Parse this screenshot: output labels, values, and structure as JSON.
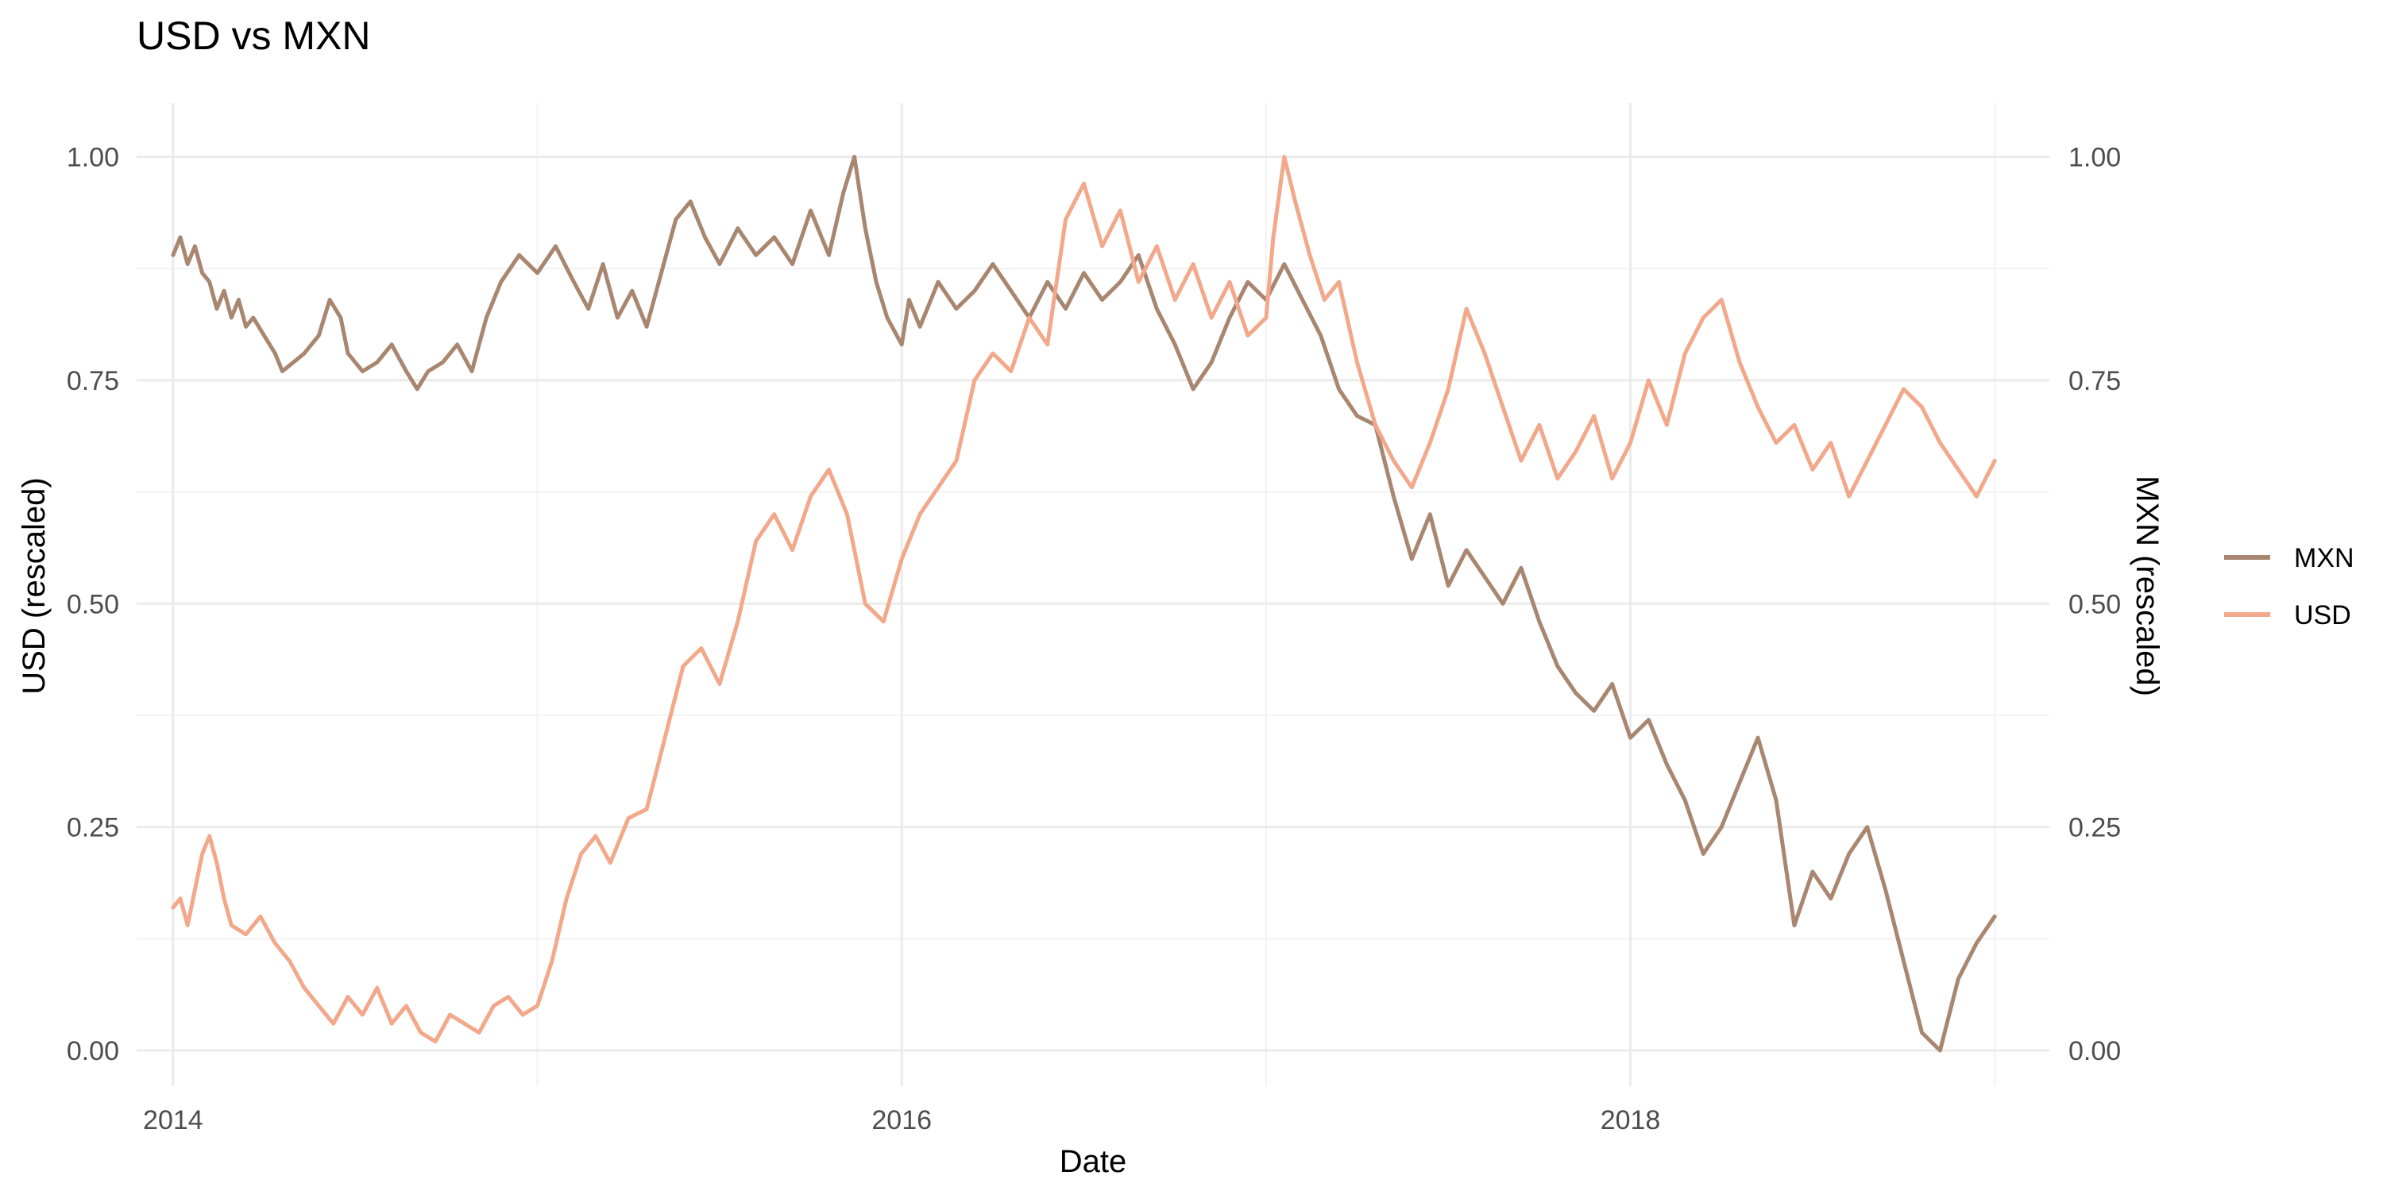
{
  "chart_data": {
    "type": "line",
    "title": "USD vs MXN",
    "xlabel": "Date",
    "ylabel": "USD (rescaled)",
    "y2label": "MXN (rescaled)",
    "xlim": [
      2013.9,
      2019.15
    ],
    "ylim": [
      -0.04,
      1.06
    ],
    "x_ticks": [
      2014,
      2016,
      2018
    ],
    "x_tick_labels": [
      "2014",
      "2016",
      "2018"
    ],
    "x_minor_ticks": [
      2015,
      2017,
      2019
    ],
    "y_ticks": [
      0,
      0.25,
      0.5,
      0.75,
      1
    ],
    "y_tick_labels": [
      "0.00",
      "0.25",
      "0.50",
      "0.75",
      "1.00"
    ],
    "y_minor_ticks": [
      0.125,
      0.375,
      0.625,
      0.875
    ],
    "grid": true,
    "legend_position": "right",
    "legend": [
      "MXN",
      "USD"
    ],
    "series": [
      {
        "name": "MXN",
        "color": "#a98670",
        "points": [
          [
            2014.0,
            0.89
          ],
          [
            2014.02,
            0.91
          ],
          [
            2014.04,
            0.88
          ],
          [
            2014.06,
            0.9
          ],
          [
            2014.08,
            0.87
          ],
          [
            2014.1,
            0.86
          ],
          [
            2014.12,
            0.83
          ],
          [
            2014.14,
            0.85
          ],
          [
            2014.16,
            0.82
          ],
          [
            2014.18,
            0.84
          ],
          [
            2014.2,
            0.81
          ],
          [
            2014.22,
            0.82
          ],
          [
            2014.25,
            0.8
          ],
          [
            2014.28,
            0.78
          ],
          [
            2014.3,
            0.76
          ],
          [
            2014.33,
            0.77
          ],
          [
            2014.36,
            0.78
          ],
          [
            2014.4,
            0.8
          ],
          [
            2014.43,
            0.84
          ],
          [
            2014.46,
            0.82
          ],
          [
            2014.48,
            0.78
          ],
          [
            2014.52,
            0.76
          ],
          [
            2014.56,
            0.77
          ],
          [
            2014.6,
            0.79
          ],
          [
            2014.64,
            0.76
          ],
          [
            2014.67,
            0.74
          ],
          [
            2014.7,
            0.76
          ],
          [
            2014.74,
            0.77
          ],
          [
            2014.78,
            0.79
          ],
          [
            2014.82,
            0.76
          ],
          [
            2014.86,
            0.82
          ],
          [
            2014.9,
            0.86
          ],
          [
            2014.95,
            0.89
          ],
          [
            2015.0,
            0.87
          ],
          [
            2015.05,
            0.9
          ],
          [
            2015.1,
            0.86
          ],
          [
            2015.14,
            0.83
          ],
          [
            2015.18,
            0.88
          ],
          [
            2015.22,
            0.82
          ],
          [
            2015.26,
            0.85
          ],
          [
            2015.3,
            0.81
          ],
          [
            2015.34,
            0.87
          ],
          [
            2015.38,
            0.93
          ],
          [
            2015.42,
            0.95
          ],
          [
            2015.46,
            0.91
          ],
          [
            2015.5,
            0.88
          ],
          [
            2015.55,
            0.92
          ],
          [
            2015.6,
            0.89
          ],
          [
            2015.65,
            0.91
          ],
          [
            2015.7,
            0.88
          ],
          [
            2015.75,
            0.94
          ],
          [
            2015.8,
            0.89
          ],
          [
            2015.84,
            0.96
          ],
          [
            2015.87,
            1.0
          ],
          [
            2015.9,
            0.92
          ],
          [
            2015.93,
            0.86
          ],
          [
            2015.96,
            0.82
          ],
          [
            2016.0,
            0.79
          ],
          [
            2016.02,
            0.84
          ],
          [
            2016.05,
            0.81
          ],
          [
            2016.1,
            0.86
          ],
          [
            2016.15,
            0.83
          ],
          [
            2016.2,
            0.85
          ],
          [
            2016.25,
            0.88
          ],
          [
            2016.3,
            0.85
          ],
          [
            2016.35,
            0.82
          ],
          [
            2016.4,
            0.86
          ],
          [
            2016.45,
            0.83
          ],
          [
            2016.5,
            0.87
          ],
          [
            2016.55,
            0.84
          ],
          [
            2016.6,
            0.86
          ],
          [
            2016.65,
            0.89
          ],
          [
            2016.7,
            0.83
          ],
          [
            2016.75,
            0.79
          ],
          [
            2016.8,
            0.74
          ],
          [
            2016.85,
            0.77
          ],
          [
            2016.9,
            0.82
          ],
          [
            2016.95,
            0.86
          ],
          [
            2017.0,
            0.84
          ],
          [
            2017.05,
            0.88
          ],
          [
            2017.1,
            0.84
          ],
          [
            2017.15,
            0.8
          ],
          [
            2017.2,
            0.74
          ],
          [
            2017.25,
            0.71
          ],
          [
            2017.3,
            0.7
          ],
          [
            2017.35,
            0.62
          ],
          [
            2017.4,
            0.55
          ],
          [
            2017.45,
            0.6
          ],
          [
            2017.5,
            0.52
          ],
          [
            2017.55,
            0.56
          ],
          [
            2017.6,
            0.53
          ],
          [
            2017.65,
            0.5
          ],
          [
            2017.7,
            0.54
          ],
          [
            2017.75,
            0.48
          ],
          [
            2017.8,
            0.43
          ],
          [
            2017.85,
            0.4
          ],
          [
            2017.9,
            0.38
          ],
          [
            2017.95,
            0.41
          ],
          [
            2018.0,
            0.35
          ],
          [
            2018.05,
            0.37
          ],
          [
            2018.1,
            0.32
          ],
          [
            2018.15,
            0.28
          ],
          [
            2018.2,
            0.22
          ],
          [
            2018.25,
            0.25
          ],
          [
            2018.3,
            0.3
          ],
          [
            2018.35,
            0.35
          ],
          [
            2018.4,
            0.28
          ],
          [
            2018.45,
            0.14
          ],
          [
            2018.5,
            0.2
          ],
          [
            2018.55,
            0.17
          ],
          [
            2018.6,
            0.22
          ],
          [
            2018.65,
            0.25
          ],
          [
            2018.7,
            0.18
          ],
          [
            2018.75,
            0.1
          ],
          [
            2018.8,
            0.02
          ],
          [
            2018.85,
            0.0
          ],
          [
            2018.9,
            0.08
          ],
          [
            2018.95,
            0.12
          ],
          [
            2019.0,
            0.15
          ]
        ]
      },
      {
        "name": "USD",
        "color": "#f2a88a",
        "points": [
          [
            2014.0,
            0.16
          ],
          [
            2014.02,
            0.17
          ],
          [
            2014.04,
            0.14
          ],
          [
            2014.06,
            0.18
          ],
          [
            2014.08,
            0.22
          ],
          [
            2014.1,
            0.24
          ],
          [
            2014.12,
            0.21
          ],
          [
            2014.14,
            0.17
          ],
          [
            2014.16,
            0.14
          ],
          [
            2014.2,
            0.13
          ],
          [
            2014.24,
            0.15
          ],
          [
            2014.28,
            0.12
          ],
          [
            2014.32,
            0.1
          ],
          [
            2014.36,
            0.07
          ],
          [
            2014.4,
            0.05
          ],
          [
            2014.44,
            0.03
          ],
          [
            2014.48,
            0.06
          ],
          [
            2014.52,
            0.04
          ],
          [
            2014.56,
            0.07
          ],
          [
            2014.6,
            0.03
          ],
          [
            2014.64,
            0.05
          ],
          [
            2014.68,
            0.02
          ],
          [
            2014.72,
            0.01
          ],
          [
            2014.76,
            0.04
          ],
          [
            2014.8,
            0.03
          ],
          [
            2014.84,
            0.02
          ],
          [
            2014.88,
            0.05
          ],
          [
            2014.92,
            0.06
          ],
          [
            2014.96,
            0.04
          ],
          [
            2015.0,
            0.05
          ],
          [
            2015.04,
            0.1
          ],
          [
            2015.08,
            0.17
          ],
          [
            2015.12,
            0.22
          ],
          [
            2015.16,
            0.24
          ],
          [
            2015.2,
            0.21
          ],
          [
            2015.25,
            0.26
          ],
          [
            2015.3,
            0.27
          ],
          [
            2015.35,
            0.35
          ],
          [
            2015.4,
            0.43
          ],
          [
            2015.45,
            0.45
          ],
          [
            2015.5,
            0.41
          ],
          [
            2015.55,
            0.48
          ],
          [
            2015.6,
            0.57
          ],
          [
            2015.65,
            0.6
          ],
          [
            2015.7,
            0.56
          ],
          [
            2015.75,
            0.62
          ],
          [
            2015.8,
            0.65
          ],
          [
            2015.85,
            0.6
          ],
          [
            2015.9,
            0.5
          ],
          [
            2015.95,
            0.48
          ],
          [
            2016.0,
            0.55
          ],
          [
            2016.05,
            0.6
          ],
          [
            2016.1,
            0.63
          ],
          [
            2016.15,
            0.66
          ],
          [
            2016.2,
            0.75
          ],
          [
            2016.25,
            0.78
          ],
          [
            2016.3,
            0.76
          ],
          [
            2016.35,
            0.82
          ],
          [
            2016.4,
            0.79
          ],
          [
            2016.45,
            0.93
          ],
          [
            2016.5,
            0.97
          ],
          [
            2016.55,
            0.9
          ],
          [
            2016.6,
            0.94
          ],
          [
            2016.65,
            0.86
          ],
          [
            2016.7,
            0.9
          ],
          [
            2016.75,
            0.84
          ],
          [
            2016.8,
            0.88
          ],
          [
            2016.85,
            0.82
          ],
          [
            2016.9,
            0.86
          ],
          [
            2016.95,
            0.8
          ],
          [
            2017.0,
            0.82
          ],
          [
            2017.02,
            0.91
          ],
          [
            2017.05,
            1.0
          ],
          [
            2017.08,
            0.95
          ],
          [
            2017.12,
            0.89
          ],
          [
            2017.16,
            0.84
          ],
          [
            2017.2,
            0.86
          ],
          [
            2017.25,
            0.77
          ],
          [
            2017.3,
            0.7
          ],
          [
            2017.35,
            0.66
          ],
          [
            2017.4,
            0.63
          ],
          [
            2017.45,
            0.68
          ],
          [
            2017.5,
            0.74
          ],
          [
            2017.55,
            0.83
          ],
          [
            2017.6,
            0.78
          ],
          [
            2017.65,
            0.72
          ],
          [
            2017.7,
            0.66
          ],
          [
            2017.75,
            0.7
          ],
          [
            2017.8,
            0.64
          ],
          [
            2017.85,
            0.67
          ],
          [
            2017.9,
            0.71
          ],
          [
            2017.95,
            0.64
          ],
          [
            2018.0,
            0.68
          ],
          [
            2018.05,
            0.75
          ],
          [
            2018.1,
            0.7
          ],
          [
            2018.15,
            0.78
          ],
          [
            2018.2,
            0.82
          ],
          [
            2018.25,
            0.84
          ],
          [
            2018.3,
            0.77
          ],
          [
            2018.35,
            0.72
          ],
          [
            2018.4,
            0.68
          ],
          [
            2018.45,
            0.7
          ],
          [
            2018.5,
            0.65
          ],
          [
            2018.55,
            0.68
          ],
          [
            2018.6,
            0.62
          ],
          [
            2018.65,
            0.66
          ],
          [
            2018.7,
            0.7
          ],
          [
            2018.75,
            0.74
          ],
          [
            2018.8,
            0.72
          ],
          [
            2018.85,
            0.68
          ],
          [
            2018.9,
            0.65
          ],
          [
            2018.95,
            0.62
          ],
          [
            2019.0,
            0.66
          ]
        ]
      }
    ]
  }
}
